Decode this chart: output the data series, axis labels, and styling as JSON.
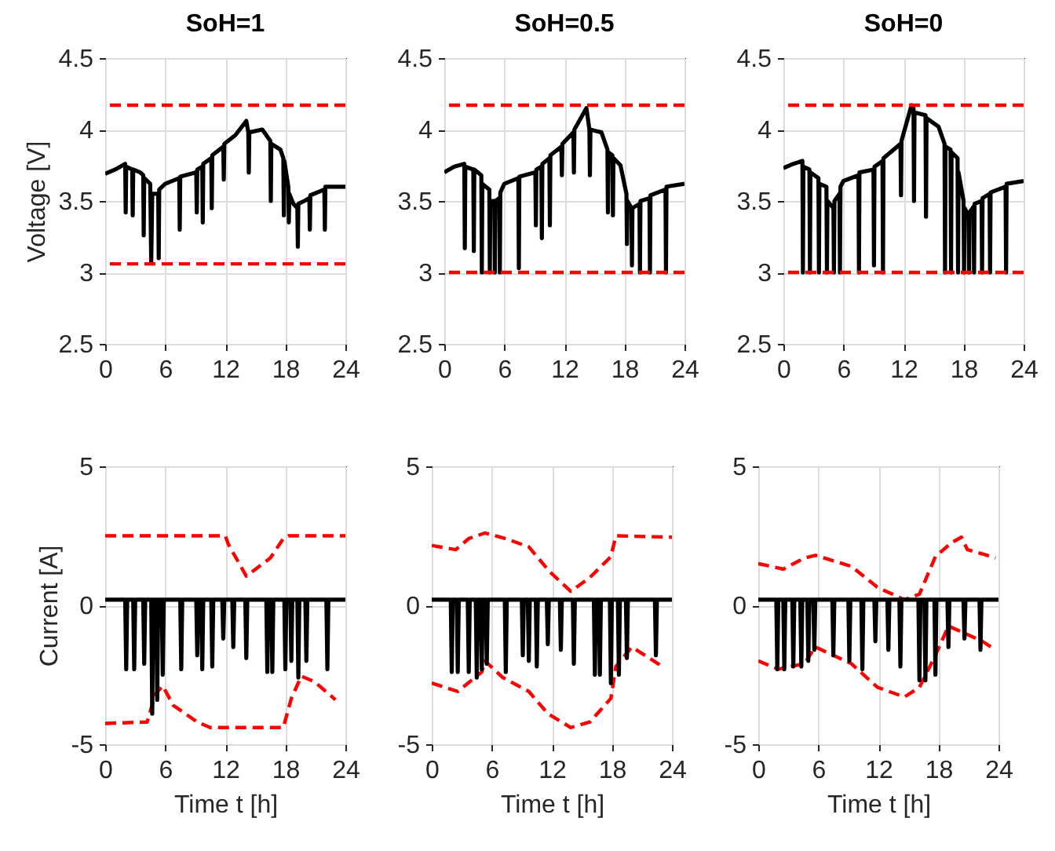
{
  "chart_data": [
    {
      "type": "line",
      "title": "SoH=1",
      "ylabel": "Voltage [V]",
      "xlim": [
        0,
        24
      ],
      "xticks": [
        0,
        6,
        12,
        18,
        24
      ],
      "ylim": [
        2.5,
        4.5
      ],
      "yticks": [
        2.5,
        3,
        3.5,
        4,
        4.5
      ],
      "grid": true,
      "series": [
        {
          "color": "#000000",
          "x": [
            0,
            1,
            2,
            2.05,
            2.1,
            2.7,
            2.75,
            2.8,
            3.5,
            3.8,
            3.85,
            3.9,
            4.5,
            4.6,
            4.7,
            5.3,
            5.35,
            5.4,
            6,
            7.4,
            7.45,
            7.5,
            9.1,
            9.15,
            9.2,
            9.7,
            9.75,
            9.8,
            10.6,
            10.65,
            10.7,
            11.8,
            11.85,
            11.9,
            13,
            14.1,
            14.3,
            14.35,
            14.4,
            15.7,
            16.5,
            16.55,
            16.6,
            17.5,
            17.8,
            17.85,
            17.9,
            18.3,
            18.35,
            18.4,
            18.8,
            19.2,
            19.25,
            19.3,
            19.9,
            20.4,
            20.45,
            20.5,
            21.9,
            21.95,
            22,
            24
          ],
          "values": [
            3.69,
            3.72,
            3.76,
            3.42,
            3.74,
            3.72,
            3.4,
            3.72,
            3.7,
            3.68,
            3.26,
            3.66,
            3.62,
            3.07,
            3.55,
            3.55,
            3.1,
            3.58,
            3.62,
            3.66,
            3.3,
            3.67,
            3.7,
            3.42,
            3.72,
            3.74,
            3.35,
            3.76,
            3.8,
            3.45,
            3.82,
            3.88,
            3.65,
            3.9,
            3.96,
            4.06,
            3.98,
            3.7,
            3.98,
            4,
            3.92,
            3.5,
            3.9,
            3.86,
            3.8,
            3.4,
            3.78,
            3.6,
            3.35,
            3.55,
            3.48,
            3.45,
            3.18,
            3.48,
            3.5,
            3.52,
            3.3,
            3.54,
            3.58,
            3.3,
            3.6,
            3.6
          ]
        }
      ],
      "ref_lines": [
        {
          "axis": "y",
          "value": 4.17,
          "color": "#ff0000",
          "line_style": "dashed"
        },
        {
          "axis": "y",
          "value": 3.06,
          "color": "#ff0000",
          "line_style": "dashed"
        }
      ]
    },
    {
      "type": "line",
      "title": "SoH=0.5",
      "xlim": [
        0,
        24
      ],
      "xticks": [
        0,
        6,
        12,
        18,
        24
      ],
      "ylim": [
        2.5,
        4.5
      ],
      "yticks": [
        2.5,
        3,
        3.5,
        4,
        4.5
      ],
      "grid": true,
      "series": [
        {
          "color": "#000000",
          "x": [
            0,
            1,
            2,
            2.05,
            2.1,
            2.9,
            2.95,
            3,
            3.7,
            3.75,
            3.8,
            4.5,
            4.55,
            4.6,
            5,
            5.05,
            5.1,
            5.5,
            5.55,
            5.6,
            6,
            7.4,
            7.45,
            7.5,
            9.1,
            9.15,
            9.2,
            9.7,
            9.75,
            9.8,
            10.5,
            10.55,
            10.6,
            11.7,
            11.75,
            11.8,
            12.9,
            12.95,
            13,
            14.2,
            14.5,
            14.55,
            14.6,
            15.7,
            16.3,
            16.35,
            16.4,
            16.8,
            16.85,
            16.9,
            17.6,
            18.2,
            18.25,
            18.3,
            18.7,
            18.75,
            18.8,
            19.5,
            19.55,
            19.6,
            20.5,
            20.55,
            20.6,
            22.1,
            22.15,
            22.2,
            24
          ],
          "values": [
            3.7,
            3.74,
            3.76,
            3.17,
            3.74,
            3.72,
            3.15,
            3.72,
            3.68,
            3,
            3.62,
            3.58,
            3,
            3.5,
            3.5,
            3,
            3.5,
            3.52,
            3,
            3.56,
            3.62,
            3.66,
            3.03,
            3.67,
            3.7,
            3.33,
            3.72,
            3.74,
            3.24,
            3.76,
            3.8,
            3.33,
            3.82,
            3.88,
            3.68,
            3.9,
            3.98,
            3.7,
            4,
            4.15,
            4,
            3.68,
            4,
            3.98,
            3.86,
            3.42,
            3.84,
            3.82,
            3.4,
            3.8,
            3.75,
            3.55,
            3.2,
            3.5,
            3.45,
            3.05,
            3.45,
            3.48,
            3,
            3.5,
            3.52,
            3,
            3.54,
            3.58,
            3,
            3.6,
            3.62
          ]
        }
      ],
      "ref_lines": [
        {
          "axis": "y",
          "value": 4.17,
          "color": "#ff0000",
          "line_style": "dashed"
        },
        {
          "axis": "y",
          "value": 3,
          "color": "#ff0000",
          "line_style": "dashed"
        }
      ]
    },
    {
      "type": "line",
      "title": "SoH=0",
      "xlim": [
        0,
        24
      ],
      "xticks": [
        0,
        6,
        12,
        18,
        24
      ],
      "ylim": [
        2.5,
        4.5
      ],
      "yticks": [
        2.5,
        3,
        3.5,
        4,
        4.5
      ],
      "grid": true,
      "series": [
        {
          "color": "#000000",
          "x": [
            0,
            1,
            1.9,
            1.95,
            2,
            2.6,
            2.65,
            2.7,
            3.5,
            3.55,
            3.6,
            4.3,
            4.35,
            4.4,
            5,
            5.05,
            5.1,
            5.6,
            5.65,
            5.7,
            6,
            7.5,
            7.55,
            7.6,
            9,
            9.05,
            9.1,
            9.9,
            9.95,
            10,
            11.7,
            11.75,
            11.8,
            12.8,
            13,
            13.05,
            13.1,
            14.2,
            14.25,
            14.3,
            15.5,
            16.1,
            16.15,
            16.2,
            16.7,
            16.75,
            16.8,
            17.4,
            17.45,
            17.5,
            18,
            18.05,
            18.1,
            18.5,
            18.55,
            18.6,
            19,
            19.05,
            19.1,
            19.8,
            19.85,
            19.9,
            20.6,
            20.65,
            20.7,
            22.2,
            22.25,
            22.3,
            24
          ],
          "values": [
            3.73,
            3.76,
            3.78,
            3,
            3.74,
            3.72,
            3,
            3.7,
            3.66,
            3,
            3.62,
            3.6,
            3,
            3.5,
            3.45,
            3,
            3.5,
            3.55,
            3,
            3.6,
            3.64,
            3.68,
            3,
            3.7,
            3.72,
            3.05,
            3.74,
            3.78,
            3,
            3.8,
            3.9,
            3.54,
            3.92,
            4.17,
            4.15,
            3.5,
            4.12,
            4.1,
            3.39,
            4.08,
            4.02,
            3.9,
            3,
            3.88,
            3.86,
            3,
            3.84,
            3.8,
            3,
            3.7,
            3.5,
            3,
            3.45,
            3.4,
            3,
            3.42,
            3.46,
            3,
            3.48,
            3.5,
            3,
            3.52,
            3.55,
            3,
            3.56,
            3.6,
            3,
            3.62,
            3.64
          ]
        }
      ],
      "ref_lines": [
        {
          "axis": "y",
          "value": 4.17,
          "color": "#ff0000",
          "line_style": "dashed"
        },
        {
          "axis": "y",
          "value": 3,
          "color": "#ff0000",
          "line_style": "dashed"
        }
      ]
    },
    {
      "type": "line",
      "xlabel": "Time t [h]",
      "ylabel": "Current [A]",
      "xlim": [
        0,
        24
      ],
      "xticks": [
        0,
        6,
        12,
        18,
        24
      ],
      "ylim": [
        -5,
        5
      ],
      "yticks": [
        -5,
        0,
        5
      ],
      "grid": true,
      "series": [
        {
          "color": "#ff0000",
          "line_style": "dashed",
          "x": [
            0,
            12,
            12.3,
            14.1,
            16.5,
            17.8,
            18.3,
            24
          ],
          "values": [
            2.5,
            2.5,
            2.2,
            1.05,
            1.7,
            2.4,
            2.5,
            2.5
          ]
        },
        {
          "color": "#ff0000",
          "line_style": "dashed",
          "x": [
            0,
            4.2,
            5,
            5.75,
            6.8,
            9.2,
            10.5,
            17.8,
            18.6,
            19.6,
            20.9,
            22.7,
            23
          ],
          "values": [
            -4.25,
            -4.2,
            -3.2,
            -2.9,
            -3.6,
            -4.2,
            -4.4,
            -4.4,
            -3.35,
            -2.55,
            -2.75,
            -3.3,
            -3.4
          ]
        },
        {
          "color": "#000000",
          "x": [
            0,
            2,
            2.1,
            2.2,
            2.8,
            2.9,
            3,
            3.8,
            3.9,
            4,
            4.6,
            4.7,
            4.8,
            5.1,
            5.2,
            5.3,
            5.65,
            5.75,
            5.85,
            7.5,
            7.6,
            7.7,
            9.1,
            9.2,
            9.3,
            9.6,
            9.7,
            9.8,
            10.6,
            10.7,
            10.8,
            11.7,
            11.8,
            11.9,
            12.7,
            12.8,
            12.9,
            14,
            14.1,
            14.2,
            16.1,
            16.2,
            16.3,
            16.6,
            16.7,
            16.8,
            17.9,
            18,
            18.1,
            18.5,
            18.6,
            18.7,
            19.2,
            19.3,
            19.4,
            20,
            20.1,
            20.2,
            22.1,
            22.2,
            22.3,
            24
          ],
          "values": [
            0.2,
            0.2,
            -2.3,
            0.2,
            0.2,
            -2.3,
            0.2,
            0.2,
            -2.1,
            0.2,
            0.2,
            -3.9,
            0.2,
            0.2,
            -3.4,
            0.2,
            0.2,
            -2.5,
            0.2,
            0.2,
            -2.3,
            0.2,
            0.2,
            -1.8,
            0.2,
            0.2,
            -2.3,
            0.2,
            0.2,
            -2.2,
            0.2,
            0.2,
            -1.2,
            0.2,
            0.2,
            -1.5,
            0.2,
            0.2,
            -1.9,
            0.2,
            0.2,
            -2.4,
            0.2,
            0.2,
            -2.4,
            0.2,
            0.2,
            -2.3,
            0.2,
            0.2,
            -2,
            0.2,
            0.2,
            -2.6,
            0.2,
            0.2,
            -2,
            0.2,
            0.2,
            -2.3,
            0.2,
            0.2
          ]
        }
      ]
    },
    {
      "type": "line",
      "xlabel": "Time t [h]",
      "xlim": [
        0,
        24
      ],
      "xticks": [
        0,
        6,
        12,
        18,
        24
      ],
      "ylim": [
        -5,
        5
      ],
      "yticks": [
        -5,
        0,
        5
      ],
      "grid": true,
      "series": [
        {
          "color": "#ff0000",
          "line_style": "dashed",
          "x": [
            0,
            2.4,
            3.7,
            5.3,
            7.4,
            9.7,
            11.8,
            13.9,
            15.8,
            17.9,
            18.4,
            24
          ],
          "values": [
            2.15,
            2,
            2.4,
            2.6,
            2.4,
            2.1,
            1.2,
            0.5,
            1,
            1.75,
            2.5,
            2.45
          ]
        },
        {
          "color": "#ff0000",
          "line_style": "dashed",
          "x": [
            0,
            2.6,
            5,
            5.3,
            7.1,
            9.7,
            11.6,
            13.9,
            15.8,
            17.9,
            18.4,
            20,
            22.6,
            23.2
          ],
          "values": [
            -2.8,
            -3.1,
            -2.4,
            -2,
            -2.6,
            -3.1,
            -3.9,
            -4.4,
            -4.2,
            -3.35,
            -2.2,
            -1.5,
            -2.1,
            -2.25
          ]
        },
        {
          "color": "#000000",
          "x": [
            0,
            1.9,
            2,
            2.1,
            2.5,
            2.6,
            2.7,
            3.6,
            3.7,
            3.8,
            4.4,
            4.5,
            4.6,
            4.9,
            5,
            5.1,
            5.4,
            5.5,
            5.6,
            7.3,
            7.4,
            7.5,
            9,
            9.1,
            9.2,
            9.6,
            9.7,
            9.8,
            10.4,
            10.5,
            10.6,
            11.5,
            11.6,
            11.7,
            12.8,
            12.9,
            13,
            14.1,
            14.2,
            14.3,
            16.2,
            16.3,
            16.4,
            16.7,
            16.8,
            16.9,
            17.8,
            17.9,
            18,
            18.6,
            18.7,
            18.8,
            19.4,
            19.5,
            19.6,
            22.3,
            22.4,
            22.5,
            24
          ],
          "values": [
            0.2,
            0.2,
            -2.4,
            0.2,
            0.2,
            -2.4,
            0.2,
            0.2,
            -2.4,
            0.2,
            0.2,
            -2.6,
            0.2,
            0.2,
            -2.3,
            0.2,
            0.2,
            -2.1,
            0.2,
            0.2,
            -2.4,
            0.2,
            0.2,
            -1.8,
            0.2,
            0.2,
            -2,
            0.2,
            0.2,
            -2.2,
            0.2,
            0.2,
            -1.4,
            0.2,
            0.2,
            -1.6,
            0.2,
            0.2,
            -2.1,
            0.2,
            0.2,
            -2.5,
            0.2,
            0.2,
            -2.5,
            0.2,
            0.2,
            -2.8,
            0.2,
            0.2,
            -2.5,
            0.2,
            0.2,
            -1.9,
            0.2,
            0.2,
            -1.8,
            0.2,
            0.2
          ]
        }
      ]
    },
    {
      "type": "line",
      "xlabel": "Time t [h]",
      "xlim": [
        0,
        24
      ],
      "xticks": [
        0,
        6,
        12,
        18,
        24
      ],
      "ylim": [
        -5,
        5
      ],
      "yticks": [
        -5,
        0,
        5
      ],
      "grid": true,
      "series": [
        {
          "color": "#ff0000",
          "line_style": "dashed",
          "x": [
            0,
            2.5,
            4.6,
            5.7,
            9.3,
            11.9,
            14.6,
            16.1,
            17.7,
            19.3,
            20.3,
            20.9,
            22.4,
            23.7
          ],
          "values": [
            1.5,
            1.3,
            1.7,
            1.8,
            1.4,
            0.65,
            0.2,
            0.4,
            1.75,
            2.25,
            2.45,
            2,
            1.85,
            1.7
          ]
        },
        {
          "color": "#ff0000",
          "line_style": "dashed",
          "x": [
            0,
            2,
            4.6,
            5.7,
            9.3,
            11.9,
            14.6,
            16.1,
            17.7,
            19,
            20.9,
            22.4,
            23.7
          ],
          "values": [
            -2,
            -2.3,
            -2.1,
            -1.5,
            -2.1,
            -2.95,
            -3.3,
            -2.95,
            -1.8,
            -0.75,
            -1.05,
            -1.3,
            -1.6
          ]
        },
        {
          "color": "#000000",
          "x": [
            0,
            1.8,
            1.9,
            2,
            2.5,
            2.6,
            2.7,
            3.4,
            3.5,
            3.6,
            4.2,
            4.3,
            4.4,
            4.9,
            5,
            5.1,
            5.5,
            5.6,
            5.7,
            7.4,
            7.5,
            7.6,
            9,
            9.1,
            9.2,
            10.3,
            10.4,
            10.5,
            11.6,
            11.7,
            11.8,
            12.9,
            13,
            13.1,
            14.1,
            14.2,
            14.3,
            16,
            16.1,
            16.2,
            16.6,
            16.7,
            16.8,
            17.6,
            17.7,
            17.8,
            18.9,
            19,
            19.1,
            20.5,
            20.6,
            20.7,
            22.1,
            22.2,
            22.3,
            24
          ],
          "values": [
            0.2,
            0.2,
            -2.3,
            0.2,
            0.2,
            -2.3,
            0.2,
            0.2,
            -2.2,
            0.2,
            0.2,
            -2.2,
            0.2,
            0.2,
            -2,
            0.2,
            0.2,
            -1.6,
            0.2,
            0.2,
            -1.8,
            0.2,
            0.2,
            -2,
            0.2,
            0.2,
            -2.3,
            0.2,
            0.2,
            -1.3,
            0.2,
            0.2,
            -1.6,
            0.2,
            0.2,
            -2.2,
            0.2,
            0.2,
            -2.7,
            0.2,
            0.2,
            -2.7,
            0.2,
            0.2,
            -2.5,
            0.2,
            0.2,
            -1.5,
            0.2,
            0.2,
            -1.2,
            0.2,
            0.2,
            -1.6,
            0.2,
            0.2
          ]
        }
      ]
    }
  ]
}
